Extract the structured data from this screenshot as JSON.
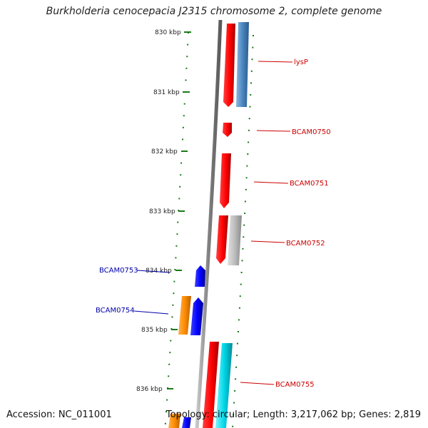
{
  "title": "Burkholderia cenocepacia J2315 chromosome 2, complete genome",
  "footer": {
    "accession": "Accession: NC_011001",
    "summary": "Topology: circular; Length: 3,217,062 bp; Genes: 2,819"
  },
  "ruler": {
    "ticks": [
      "830 kbp",
      "831 kbp",
      "832 kbp",
      "833 kbp",
      "834 kbp",
      "835 kbp",
      "836 kbp"
    ]
  },
  "genes": [
    {
      "label": "lysP",
      "strand": "forward",
      "color": "#cc0000"
    },
    {
      "label": "BCAM0750",
      "strand": "forward",
      "color": "#cc0000"
    },
    {
      "label": "BCAM0751",
      "strand": "forward",
      "color": "#cc0000"
    },
    {
      "label": "BCAM0752",
      "strand": "forward",
      "color": "#cc0000"
    },
    {
      "label": "BCAM0753",
      "strand": "reverse",
      "color": "#0000aa"
    },
    {
      "label": "BCAM0754",
      "strand": "reverse",
      "color": "#0000aa"
    },
    {
      "label": "BCAM0755",
      "strand": "forward",
      "color": "#cc0000"
    }
  ],
  "colors": {
    "cds": "#ff0000",
    "cds_reverse": "#0000ff",
    "steelblue": "#4a86c0",
    "gray": "#bdbdbd",
    "orange": "#ff8c00",
    "cyan": "#00d8e8",
    "ruler": "#1a7a1a",
    "backbone": "#808080"
  }
}
